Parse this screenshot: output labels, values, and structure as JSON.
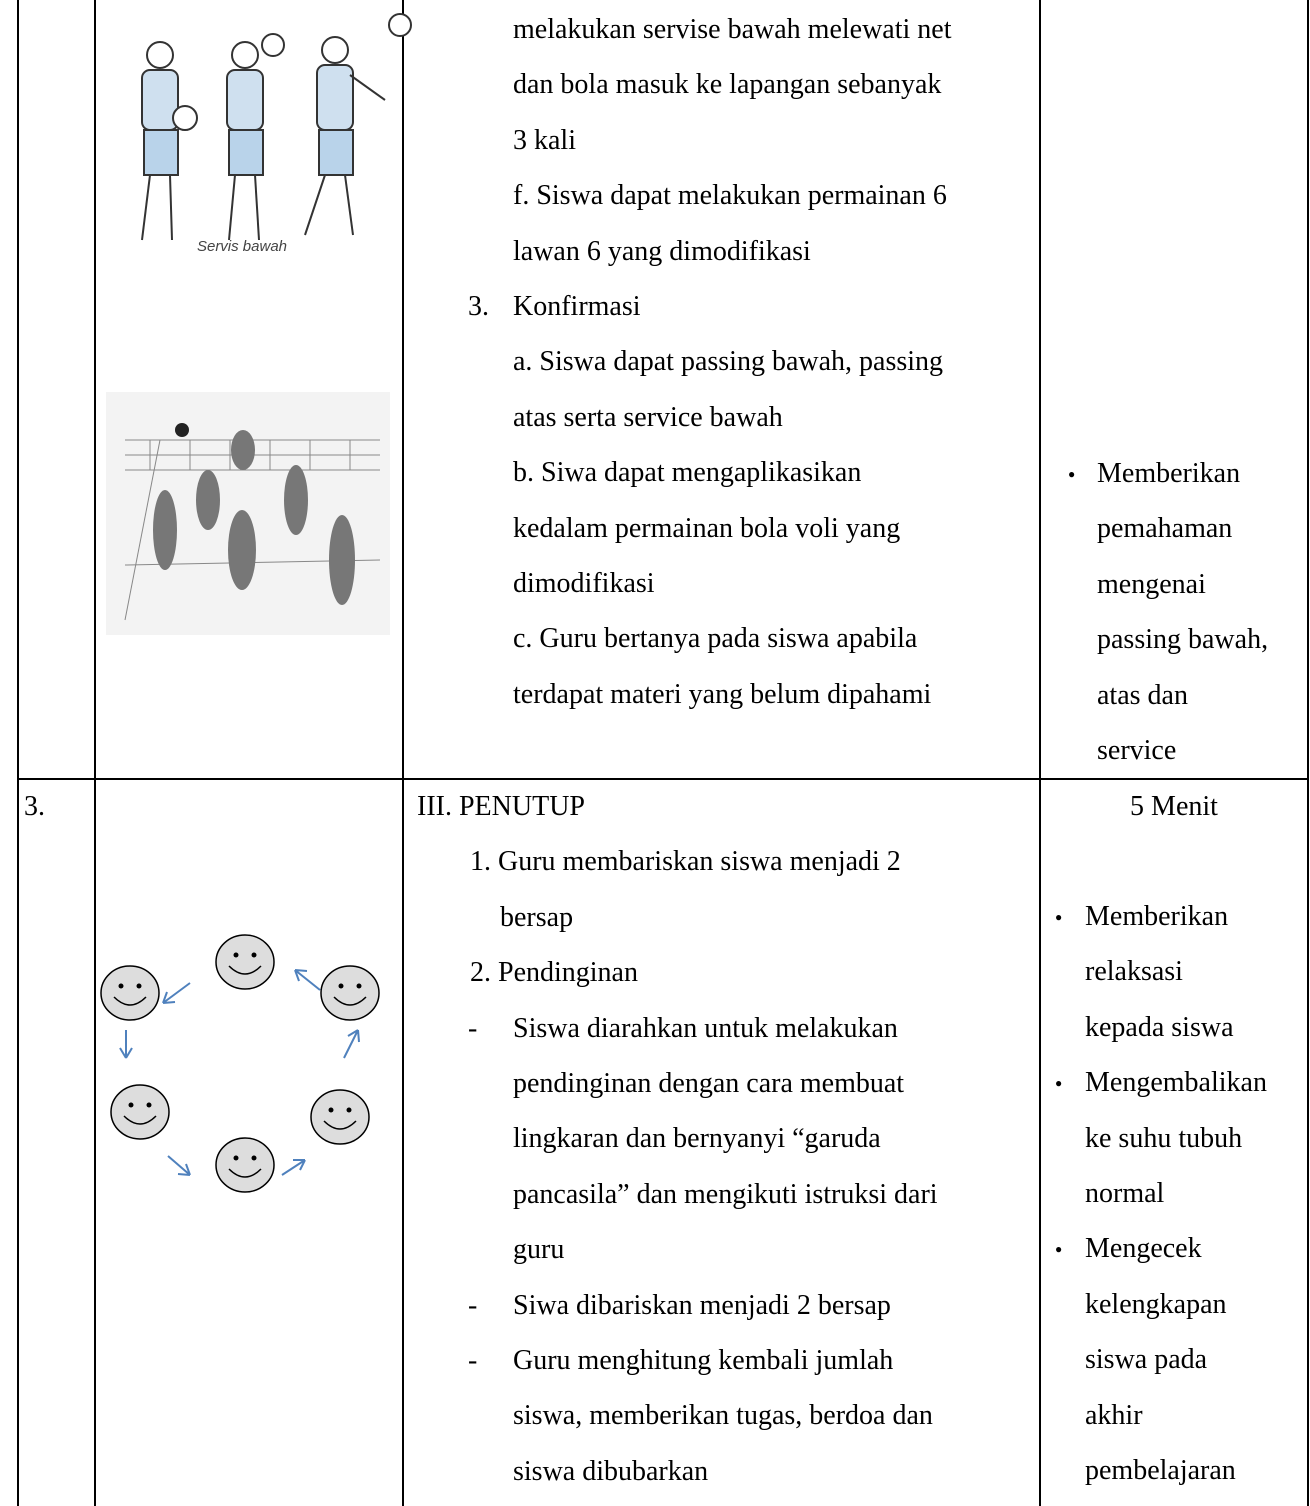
{
  "table": {
    "rows": [
      {
        "caption": "Servis bawah",
        "activities": [
          {
            "text": "melakukan servise bawah melewati net"
          },
          {
            "text": "dan bola masuk ke lapangan sebanyak"
          },
          {
            "text": "3 kali"
          },
          {
            "text": "f. Siswa dapat melakukan permainan 6"
          },
          {
            "text": "lawan 6 yang dimodifikasi"
          },
          {
            "marker": "3.",
            "text": "Konfirmasi"
          },
          {
            "text": "a. Siswa dapat passing bawah, passing"
          },
          {
            "text": "atas serta service bawah"
          },
          {
            "text": "b. Siwa dapat mengaplikasikan"
          },
          {
            "text": "kedalam permainan bola voli yang"
          },
          {
            "text": "dimodifikasi"
          },
          {
            "text": "c. Guru bertanya pada siswa apabila"
          },
          {
            "text": "terdapat materi yang belum dipahami"
          }
        ],
        "notes": [
          [
            "Memberikan",
            "pemahaman",
            "mengenai",
            "passing bawah,",
            "atas dan",
            "service"
          ]
        ]
      },
      {
        "number": "3.",
        "activities": [
          {
            "text": "III. PENUTUP"
          },
          {
            "text": "1. Guru membariskan siswa menjadi 2"
          },
          {
            "text": "bersap"
          },
          {
            "text": "2. Pendinginan"
          },
          {
            "marker": "-",
            "text": "Siswa diarahkan untuk melakukan"
          },
          {
            "text": "pendinginan dengan cara membuat"
          },
          {
            "text": "lingkaran dan bernyanyi “garuda"
          },
          {
            "text": "pancasila” dan mengikuti istruksi dari"
          },
          {
            "text": "guru"
          },
          {
            "marker": "-",
            "text": "Siwa dibariskan menjadi 2 bersap"
          },
          {
            "marker": "-",
            "text": "Guru menghitung kembali jumlah"
          },
          {
            "text": "siswa, memberikan tugas, berdoa dan"
          },
          {
            "text": "siswa dibubarkan"
          }
        ],
        "time": "5 Menit",
        "notes": [
          [
            "Memberikan",
            "relaksasi",
            "kepada siswa"
          ],
          [
            "Mengembalikan",
            "ke suhu tubuh",
            "normal"
          ],
          [
            "Mengecek",
            "kelengkapan",
            "siswa pada",
            "akhir",
            "pembelajaran"
          ]
        ]
      }
    ]
  }
}
